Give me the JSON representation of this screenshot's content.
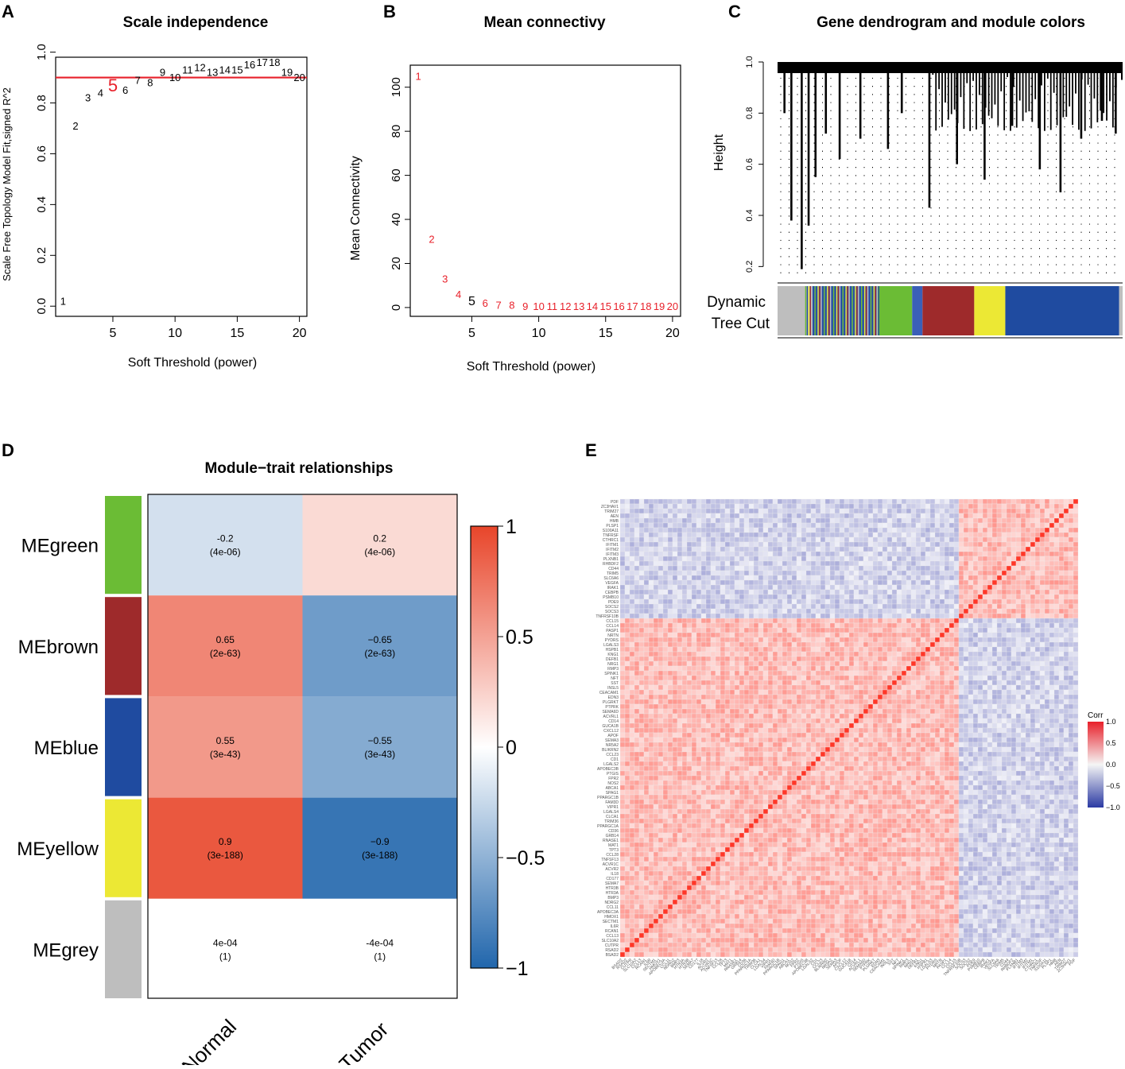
{
  "panels": {
    "A": {
      "label": "A",
      "chart_data": {
        "type": "scatter",
        "title": "Scale independence",
        "xlabel": "Soft Threshold (power)",
        "ylabel": "Scale Free Topology Model Fit,signed R^2",
        "xlim": [
          0.4,
          20.6
        ],
        "ylim": [
          -0.04,
          0.98
        ],
        "xticks": [
          5,
          10,
          15,
          20
        ],
        "yticks": [
          0.0,
          0.2,
          0.4,
          0.6,
          0.8,
          1.0
        ],
        "ytick_labels": [
          "0.0",
          "0.2",
          "0.4",
          "0.6",
          "0.8",
          "1.0"
        ],
        "hline": 0.9,
        "hline_color": "#e8202a",
        "highlight": "5",
        "highlight_color": "#e8202a",
        "points": [
          {
            "label": "1",
            "x": 1,
            "y": 0.02
          },
          {
            "label": "2",
            "x": 2,
            "y": 0.71
          },
          {
            "label": "3",
            "x": 3,
            "y": 0.82
          },
          {
            "label": "4",
            "x": 4,
            "y": 0.84
          },
          {
            "label": "5",
            "x": 5,
            "y": 0.87
          },
          {
            "label": "6",
            "x": 6,
            "y": 0.85
          },
          {
            "label": "7",
            "x": 7,
            "y": 0.89
          },
          {
            "label": "8",
            "x": 8,
            "y": 0.88
          },
          {
            "label": "9",
            "x": 9,
            "y": 0.92
          },
          {
            "label": "10",
            "x": 10,
            "y": 0.9
          },
          {
            "label": "11",
            "x": 11,
            "y": 0.93
          },
          {
            "label": "12",
            "x": 12,
            "y": 0.94
          },
          {
            "label": "13",
            "x": 13,
            "y": 0.92
          },
          {
            "label": "14",
            "x": 14,
            "y": 0.93
          },
          {
            "label": "15",
            "x": 15,
            "y": 0.93
          },
          {
            "label": "16",
            "x": 16,
            "y": 0.95
          },
          {
            "label": "17",
            "x": 17,
            "y": 0.96
          },
          {
            "label": "18",
            "x": 18,
            "y": 0.96
          },
          {
            "label": "19",
            "x": 19,
            "y": 0.92
          },
          {
            "label": "20",
            "x": 20,
            "y": 0.9
          }
        ]
      }
    },
    "B": {
      "label": "B",
      "chart_data": {
        "type": "scatter",
        "title": "Mean connectivy",
        "xlabel": "Soft Threshold (power)",
        "ylabel": "Mean Connectivity",
        "xlim": [
          0.4,
          20.6
        ],
        "ylim": [
          -4,
          110
        ],
        "xticks": [
          5,
          10,
          15,
          20
        ],
        "yticks": [
          0,
          20,
          40,
          60,
          80,
          100
        ],
        "highlight": "5",
        "point_color": "#e8202a",
        "highlight_color": "#000000",
        "points": [
          {
            "label": "1",
            "x": 1,
            "y": 105
          },
          {
            "label": "2",
            "x": 2,
            "y": 31
          },
          {
            "label": "3",
            "x": 3,
            "y": 13
          },
          {
            "label": "4",
            "x": 4,
            "y": 6
          },
          {
            "label": "5",
            "x": 5,
            "y": 3
          },
          {
            "label": "6",
            "x": 6,
            "y": 2
          },
          {
            "label": "7",
            "x": 7,
            "y": 1
          },
          {
            "label": "8",
            "x": 8,
            "y": 1
          },
          {
            "label": "9",
            "x": 9,
            "y": 0.5
          },
          {
            "label": "10",
            "x": 10,
            "y": 0.5
          },
          {
            "label": "11",
            "x": 11,
            "y": 0.5
          },
          {
            "label": "12",
            "x": 12,
            "y": 0.5
          },
          {
            "label": "13",
            "x": 13,
            "y": 0.5
          },
          {
            "label": "14",
            "x": 14,
            "y": 0.5
          },
          {
            "label": "15",
            "x": 15,
            "y": 0.5
          },
          {
            "label": "16",
            "x": 16,
            "y": 0.5
          },
          {
            "label": "17",
            "x": 17,
            "y": 0.5
          },
          {
            "label": "18",
            "x": 18,
            "y": 0.5
          },
          {
            "label": "19",
            "x": 19,
            "y": 0.5
          },
          {
            "label": "20",
            "x": 20,
            "y": 0.5
          }
        ]
      }
    },
    "C": {
      "label": "C",
      "chart_data": {
        "type": "dendrogram",
        "title": "Gene dendrogram and module colors",
        "ylabel": "Height",
        "ylim": [
          0.17,
          1.0
        ],
        "yticks": [
          0.2,
          0.4,
          0.6,
          0.8,
          1.0
        ],
        "ytick_labels": [
          "0.2",
          "0.4",
          "0.6",
          "0.8",
          "1.0"
        ],
        "colorbar_label": [
          "Dynamic",
          "Tree Cut"
        ],
        "modules": [
          {
            "name": "grey",
            "color": "#bebebe",
            "start": 0.0,
            "end": 0.1
          },
          {
            "name": "mixed",
            "color": "#3a5fb8",
            "start": 0.1,
            "end": 0.29
          },
          {
            "name": "green",
            "color": "#6bbc35",
            "start": 0.29,
            "end": 0.39
          },
          {
            "name": "mixed",
            "color": "#3a5fb8",
            "start": 0.39,
            "end": 0.42
          },
          {
            "name": "brown",
            "color": "#9e2a2b",
            "start": 0.42,
            "end": 0.57
          },
          {
            "name": "yellow",
            "color": "#ece834",
            "start": 0.57,
            "end": 0.66
          },
          {
            "name": "blue",
            "color": "#1f4ba0",
            "start": 0.66,
            "end": 0.99
          },
          {
            "name": "grey",
            "color": "#bebebe",
            "start": 0.99,
            "end": 1.0
          }
        ],
        "branches": [
          {
            "x": 0.07,
            "y": 0.19
          },
          {
            "x": 0.04,
            "y": 0.38
          },
          {
            "x": 0.09,
            "y": 0.36
          },
          {
            "x": 0.02,
            "y": 0.8
          },
          {
            "x": 0.11,
            "y": 0.55
          },
          {
            "x": 0.14,
            "y": 0.72
          },
          {
            "x": 0.18,
            "y": 0.62
          },
          {
            "x": 0.24,
            "y": 0.7
          },
          {
            "x": 0.32,
            "y": 0.66
          },
          {
            "x": 0.36,
            "y": 0.8
          },
          {
            "x": 0.44,
            "y": 0.43
          },
          {
            "x": 0.52,
            "y": 0.6
          },
          {
            "x": 0.6,
            "y": 0.54
          },
          {
            "x": 0.68,
            "y": 0.75
          },
          {
            "x": 0.76,
            "y": 0.58
          },
          {
            "x": 0.82,
            "y": 0.49
          },
          {
            "x": 0.88,
            "y": 0.7
          },
          {
            "x": 0.94,
            "y": 0.77
          },
          {
            "x": 0.98,
            "y": 0.72
          }
        ]
      }
    },
    "D": {
      "label": "D",
      "chart_data": {
        "type": "heatmap",
        "title": "Module−trait relationships",
        "modules": [
          "MEgreen",
          "MEbrown",
          "MEblue",
          "MEyellow",
          "MEgrey"
        ],
        "module_colors": [
          "#6bbc35",
          "#9e2a2b",
          "#1f4ba0",
          "#ece834",
          "#bebebe"
        ],
        "traits": [
          "Normal",
          "Tumor"
        ],
        "values": [
          [
            -0.2,
            0.2
          ],
          [
            0.65,
            -0.65
          ],
          [
            0.55,
            -0.55
          ],
          [
            0.9,
            -0.9
          ],
          [
            0.0004,
            -0.0004
          ]
        ],
        "cells": [
          [
            {
              "value": "-0.2",
              "p": "(4e-06)"
            },
            {
              "value": "0.2",
              "p": "(4e-06)"
            }
          ],
          [
            {
              "value": "0.65",
              "p": "(2e-63)"
            },
            {
              "value": "−0.65",
              "p": "(2e-63)"
            }
          ],
          [
            {
              "value": "0.55",
              "p": "(3e-43)"
            },
            {
              "value": "−0.55",
              "p": "(3e-43)"
            }
          ],
          [
            {
              "value": "0.9",
              "p": "(3e-188)"
            },
            {
              "value": "−0.9",
              "p": "(3e-188)"
            }
          ],
          [
            {
              "value": "4e-04",
              "p": "(1)"
            },
            {
              "value": "-4e-04",
              "p": "(1)"
            }
          ]
        ],
        "colorscale": {
          "range": [
            -1,
            1
          ],
          "ticks": [
            1,
            0.5,
            0,
            -0.5,
            -1
          ],
          "tick_labels": [
            "1",
            "0.5",
            "0",
            "−0.5",
            "−1"
          ],
          "low": "#2166ac",
          "mid": "#ffffff",
          "high": "#e8452a"
        }
      }
    },
    "E": {
      "label": "E",
      "chart_data": {
        "type": "heatmap",
        "title": "",
        "legend_title": "Corr",
        "legend_ticks": [
          "1.0",
          "0.5",
          "0.0",
          "−0.5",
          "−1.0"
        ],
        "block_split_fraction": 0.26,
        "description_values": {
          "within_block": 0.35,
          "between_block": -0.25,
          "diagonal": 1.0
        },
        "genes": [
          "PDF",
          "ZC3HAV1",
          "TRIM27",
          "AEN",
          "HMB",
          "PLSP1",
          "S100A11",
          "TNFRSF",
          "CTHRC1",
          "IFITM1",
          "IFITM2",
          "IFITM3",
          "PLXNB1",
          "RHBDF2",
          "CD44",
          "TRIM5",
          "SLC6A6",
          "VEGFA",
          "IRAK1",
          "CEBPB",
          "PSMB10",
          "PDE9",
          "SOCS2",
          "SOCS3",
          "TNFRSF10B",
          "CCL15",
          "CCL14",
          "PASP1",
          "NRTN",
          "PYDRS",
          "LGALS3",
          "HSPB1",
          "KNG1",
          "DEFB1",
          "NRG1",
          "RMP3",
          "SPINK1",
          "NFT",
          "SST",
          "INSL5",
          "CEACAM1",
          "EDN3",
          "PLGRKT",
          "PTPRK",
          "SEMA6D",
          "ACVRL1",
          "CD14",
          "GUCA1B",
          "CXCL12",
          "APOF",
          "SEMA3",
          "NR5A2",
          "BLIKRN2",
          "CCL23",
          "CD1",
          "LGALS2",
          "APOBEC3B",
          "PTGIS",
          "FPR2",
          "NOS2",
          "ABCA1",
          "SPAG1",
          "PPARGC1B",
          "FAM3D",
          "VIPR1",
          "LGALS4",
          "CLCA1",
          "TRIM36",
          "PPARGC1A",
          "CD36",
          "GRB14",
          "RNASE1",
          "MAT1",
          "TPT3",
          "CCL28",
          "TNFSF13",
          "ACVR1C",
          "ACVR2",
          "IL18",
          "CD177",
          "SEMA7",
          "HTR3B",
          "HTR3A",
          "BMP3",
          "NDRG2",
          "CCL11",
          "APOBEC3A",
          "HMOX1",
          "SECTM1",
          "IL6R",
          "RCAN1",
          "CCL13",
          "SLC10A2",
          "CUTPR",
          "RSAD2",
          "BSAD2"
        ]
      }
    }
  }
}
